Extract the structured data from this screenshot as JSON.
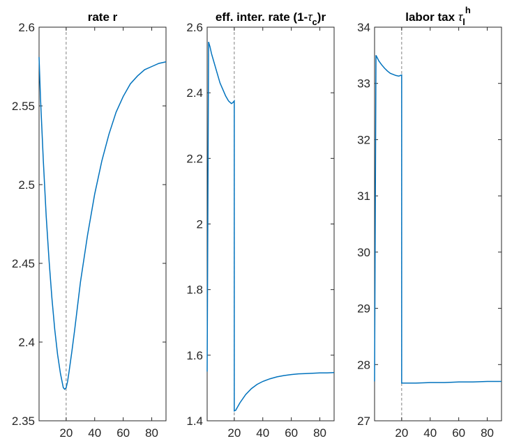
{
  "figure": {
    "line_color": "#0072BD",
    "marker_color": "#808080",
    "axis_color": "#262626"
  },
  "chart_data": [
    {
      "type": "line",
      "title": "rate r",
      "title_parts": [
        {
          "text": "rate r"
        }
      ],
      "xlim": [
        1,
        90
      ],
      "ylim": [
        2.35,
        2.6
      ],
      "xticks": [
        20,
        40,
        60,
        80
      ],
      "xtick_labels": [
        "20",
        "40",
        "60",
        "80"
      ],
      "yticks": [
        2.35,
        2.4,
        2.45,
        2.5,
        2.55,
        2.6
      ],
      "ytick_labels": [
        "2.35",
        "2.4",
        "2.45",
        "2.5",
        "2.55",
        "2.6"
      ],
      "vline_x": 20,
      "grid": false,
      "series": [
        {
          "x": [
            1,
            2,
            4,
            6,
            8,
            10,
            12,
            14,
            16,
            18,
            19,
            20,
            21,
            22,
            24,
            26,
            28,
            30,
            35,
            40,
            45,
            50,
            55,
            60,
            65,
            70,
            75,
            80,
            85,
            90
          ],
          "y": [
            2.581,
            2.555,
            2.515,
            2.48,
            2.452,
            2.428,
            2.408,
            2.392,
            2.38,
            2.371,
            2.37,
            2.371,
            2.375,
            2.381,
            2.394,
            2.408,
            2.423,
            2.438,
            2.468,
            2.494,
            2.515,
            2.532,
            2.546,
            2.556,
            2.564,
            2.569,
            2.573,
            2.575,
            2.577,
            2.578
          ]
        }
      ]
    },
    {
      "type": "line",
      "title": "eff. inter. rate (1-τc)r",
      "title_parts": [
        {
          "text": "eff. inter. rate (1-"
        },
        {
          "text": "τ",
          "italic": true
        },
        {
          "text": "c",
          "sub": true
        },
        {
          "text": ")r"
        }
      ],
      "xlim": [
        1,
        90
      ],
      "ylim": [
        1.4,
        2.6
      ],
      "xticks": [
        20,
        40,
        60,
        80
      ],
      "xtick_labels": [
        "20",
        "40",
        "60",
        "80"
      ],
      "yticks": [
        1.4,
        1.6,
        1.8,
        2.0,
        2.2,
        2.4,
        2.6
      ],
      "ytick_labels": [
        "1.4",
        "1.6",
        "1.8",
        "2",
        "2.2",
        "2.4",
        "2.6"
      ],
      "vline_x": 20,
      "grid": false,
      "series": [
        {
          "x": [
            1,
            2,
            3,
            4,
            6,
            8,
            10,
            12,
            14,
            16,
            18,
            19,
            20,
            20,
            21,
            24,
            28,
            32,
            36,
            40,
            45,
            50,
            55,
            60,
            65,
            70,
            75,
            80,
            85,
            90
          ],
          "y": [
            1.55,
            2.555,
            2.54,
            2.52,
            2.49,
            2.46,
            2.43,
            2.41,
            2.39,
            2.375,
            2.367,
            2.37,
            2.375,
            1.43,
            1.432,
            1.455,
            1.48,
            1.498,
            1.511,
            1.52,
            1.528,
            1.534,
            1.538,
            1.541,
            1.543,
            1.544,
            1.545,
            1.546,
            1.546,
            1.547
          ]
        }
      ]
    },
    {
      "type": "line",
      "title": "labor tax τlh",
      "title_parts": [
        {
          "text": "labor tax "
        },
        {
          "text": "τ",
          "italic": true
        },
        {
          "text": "l",
          "sub": true
        },
        {
          "text": "h",
          "sup": true
        }
      ],
      "xlim": [
        1,
        90
      ],
      "ylim": [
        27,
        34
      ],
      "xticks": [
        20,
        40,
        60,
        80
      ],
      "xtick_labels": [
        "20",
        "40",
        "60",
        "80"
      ],
      "yticks": [
        27,
        28,
        29,
        30,
        31,
        32,
        33,
        34
      ],
      "ytick_labels": [
        "27",
        "28",
        "29",
        "30",
        "31",
        "32",
        "33",
        "34"
      ],
      "vline_x": 20,
      "grid": false,
      "series": [
        {
          "x": [
            1,
            2,
            3,
            4,
            6,
            8,
            10,
            12,
            14,
            16,
            18,
            19,
            20,
            20,
            21,
            30,
            40,
            50,
            60,
            70,
            80,
            90
          ],
          "y": [
            27.7,
            33.5,
            33.45,
            33.4,
            33.33,
            33.27,
            33.22,
            33.18,
            33.16,
            33.14,
            33.13,
            33.14,
            33.15,
            27.67,
            27.67,
            27.67,
            27.68,
            27.68,
            27.69,
            27.69,
            27.7,
            27.7
          ]
        }
      ]
    }
  ]
}
